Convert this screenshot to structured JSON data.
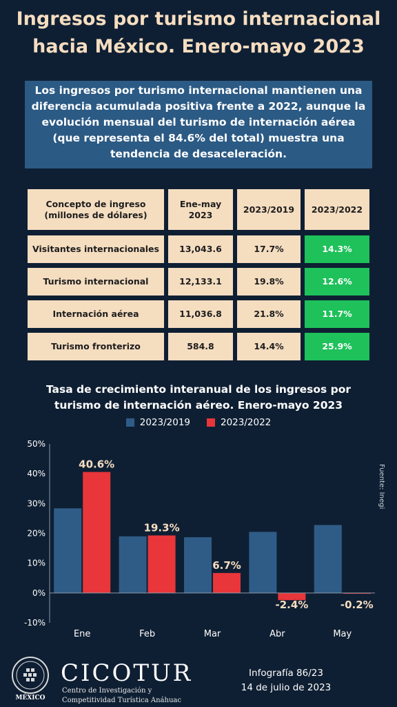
{
  "title_line1": "Ingresos por turismo internacional",
  "title_line2": "hacia México. Enero-mayo 2023",
  "summary": [
    "Los ingresos por turismo internacional mantienen una",
    "diferencia acumulada positiva frente a 2022, aunque la",
    "evolución mensual del turismo de internación aérea",
    "(que representa el 84.6% del total) muestra una",
    "tendencia de desaceleración."
  ],
  "table": {
    "headers": [
      "Concepto de ingreso (millones de dólares)",
      "Ene-may 2023",
      "2023/2019",
      "2023/2022"
    ],
    "rows": [
      [
        "Visitantes internacionales",
        "13,043.6",
        "17.7%",
        "14.3%"
      ],
      [
        "Turismo internacional",
        "12,133.1",
        "19.8%",
        "12.6%"
      ],
      [
        "Internación aérea",
        "11,036.8",
        "21.8%",
        "11.7%"
      ],
      [
        "Turismo fronterizo",
        "584.8",
        "14.4%",
        "25.9%"
      ]
    ]
  },
  "source": "Fuente: Inegi",
  "footer": {
    "brand": "CICOTUR",
    "brand_sub_line1": "Centro de Investigación y",
    "brand_sub_line2": "Competitividad Turística Anáhuac",
    "logo_text": "MÉXICO",
    "info_line1": "Infografía 86/23",
    "info_line2": "14 de julio de 2023"
  },
  "colors": {
    "background": "#0f1f33",
    "series_2019": "#2f5c87",
    "series_2022": "#e8363a",
    "table_cell": "#f5ddc0",
    "positive_cell": "#1ec15a"
  },
  "chart_data": {
    "type": "bar",
    "title": "Tasa de crecimiento interanual de los ingresos por turismo de internación aéreo. Enero-mayo 2023",
    "categories": [
      "Ene",
      "Feb",
      "Mar",
      "Abr",
      "May"
    ],
    "series": [
      {
        "name": "2023/2019",
        "values": [
          28.4,
          19.0,
          18.7,
          20.5,
          22.8
        ]
      },
      {
        "name": "2023/2022",
        "values": [
          40.6,
          19.3,
          6.7,
          -2.4,
          -0.2
        ]
      }
    ],
    "data_labels_series": "2023/2022",
    "data_labels": [
      "40.6%",
      "19.3%",
      "6.7%",
      "-2.4%",
      "-0.2%"
    ],
    "ylim": [
      -10,
      50
    ],
    "yticks": [
      -10,
      0,
      10,
      20,
      30,
      40,
      50
    ],
    "ytick_labels": [
      "-10%",
      "0%",
      "10%",
      "20%",
      "30%",
      "40%",
      "50%"
    ],
    "xlabel": "",
    "ylabel": "",
    "grid": false,
    "legend": "top-center"
  }
}
